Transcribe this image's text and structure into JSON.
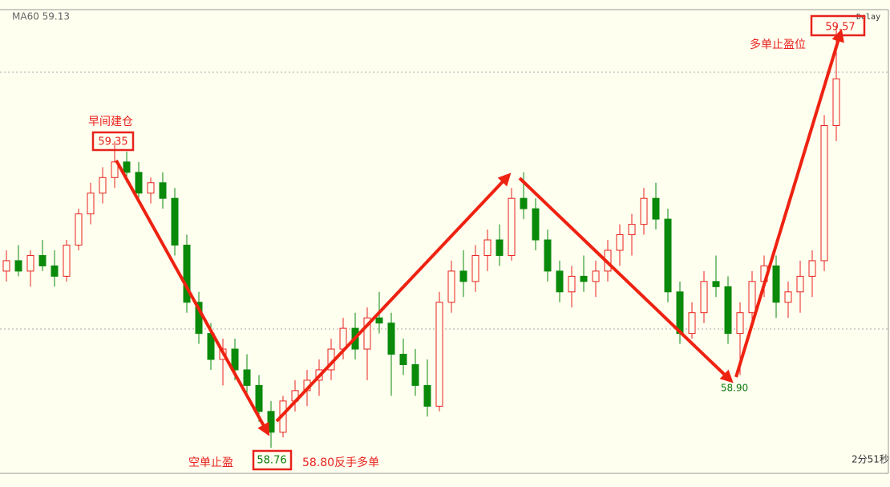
{
  "chart_data": {
    "type": "candlestick",
    "indicator": "MA60 59.13",
    "delay": "Delay",
    "timer": "2分51秒",
    "annotations": {
      "entry": "早间建仓",
      "entry_price": "59.35",
      "short_tp": "空单止盈",
      "short_tp_price": "58.76",
      "reverse": "58.80反手多单",
      "low2_price": "58.90",
      "long_tp": "多单止盈位",
      "long_tp_price": "59.57"
    },
    "up_color": "#e8221c",
    "down_color": "#0a8a0a",
    "ylim": [
      58.7,
      59.6
    ],
    "ohlc": [
      [
        59.1,
        59.14,
        59.08,
        59.12
      ],
      [
        59.12,
        59.15,
        59.09,
        59.1
      ],
      [
        59.1,
        59.14,
        59.07,
        59.13
      ],
      [
        59.13,
        59.16,
        59.1,
        59.11
      ],
      [
        59.11,
        59.14,
        59.07,
        59.09
      ],
      [
        59.09,
        59.16,
        59.08,
        59.15
      ],
      [
        59.15,
        59.22,
        59.14,
        59.21
      ],
      [
        59.21,
        59.27,
        59.19,
        59.25
      ],
      [
        59.25,
        59.3,
        59.23,
        59.28
      ],
      [
        59.28,
        59.35,
        59.26,
        59.31
      ],
      [
        59.31,
        59.33,
        59.27,
        59.29
      ],
      [
        59.29,
        59.31,
        59.24,
        59.25
      ],
      [
        59.25,
        59.28,
        59.23,
        59.27
      ],
      [
        59.27,
        59.29,
        59.22,
        59.24
      ],
      [
        59.24,
        59.26,
        59.13,
        59.15
      ],
      [
        59.15,
        59.17,
        59.02,
        59.04
      ],
      [
        59.04,
        59.06,
        58.96,
        58.98
      ],
      [
        58.98,
        59.0,
        58.91,
        58.93
      ],
      [
        58.93,
        58.97,
        58.88,
        58.95
      ],
      [
        58.95,
        58.97,
        58.89,
        58.91
      ],
      [
        58.91,
        58.94,
        58.86,
        58.88
      ],
      [
        58.88,
        58.9,
        58.81,
        58.83
      ],
      [
        58.83,
        58.85,
        58.76,
        58.79
      ],
      [
        58.79,
        58.86,
        58.78,
        58.85
      ],
      [
        58.85,
        58.89,
        58.83,
        58.87
      ],
      [
        58.87,
        58.91,
        58.84,
        58.89
      ],
      [
        58.89,
        58.93,
        58.86,
        58.91
      ],
      [
        58.91,
        58.97,
        58.89,
        58.95
      ],
      [
        58.95,
        59.01,
        58.93,
        58.99
      ],
      [
        58.99,
        59.02,
        58.93,
        58.95
      ],
      [
        58.95,
        59.03,
        58.89,
        59.01
      ],
      [
        59.01,
        59.06,
        58.98,
        59.0
      ],
      [
        59.0,
        59.02,
        58.86,
        58.94
      ],
      [
        58.94,
        58.97,
        58.9,
        58.92
      ],
      [
        58.92,
        58.95,
        58.86,
        58.88
      ],
      [
        58.88,
        58.93,
        58.82,
        58.84
      ],
      [
        58.84,
        59.06,
        58.83,
        59.04
      ],
      [
        59.04,
        59.12,
        59.02,
        59.1
      ],
      [
        59.1,
        59.14,
        59.05,
        59.08
      ],
      [
        59.08,
        59.15,
        59.06,
        59.13
      ],
      [
        59.13,
        59.18,
        59.1,
        59.16
      ],
      [
        59.16,
        59.19,
        59.11,
        59.13
      ],
      [
        59.13,
        59.26,
        59.12,
        59.24
      ],
      [
        59.24,
        59.29,
        59.2,
        59.22
      ],
      [
        59.22,
        59.24,
        59.14,
        59.16
      ],
      [
        59.16,
        59.18,
        59.08,
        59.1
      ],
      [
        59.1,
        59.12,
        59.04,
        59.06
      ],
      [
        59.06,
        59.11,
        59.03,
        59.09
      ],
      [
        59.09,
        59.13,
        59.06,
        59.08
      ],
      [
        59.08,
        59.12,
        59.05,
        59.1
      ],
      [
        59.1,
        59.16,
        59.08,
        59.14
      ],
      [
        59.14,
        59.19,
        59.11,
        59.17
      ],
      [
        59.17,
        59.21,
        59.13,
        59.19
      ],
      [
        59.19,
        59.26,
        59.17,
        59.24
      ],
      [
        59.24,
        59.27,
        59.18,
        59.2
      ],
      [
        59.2,
        59.22,
        59.04,
        59.06
      ],
      [
        59.06,
        59.08,
        58.96,
        58.98
      ],
      [
        58.98,
        59.04,
        58.97,
        59.02
      ],
      [
        59.02,
        59.1,
        59.0,
        59.08
      ],
      [
        59.08,
        59.13,
        59.05,
        59.07
      ],
      [
        59.07,
        59.09,
        58.96,
        58.98
      ],
      [
        58.98,
        59.04,
        58.9,
        59.02
      ],
      [
        59.02,
        59.1,
        59.0,
        59.08
      ],
      [
        59.08,
        59.13,
        59.05,
        59.11
      ],
      [
        59.11,
        59.13,
        59.01,
        59.04
      ],
      [
        59.04,
        59.08,
        59.01,
        59.06
      ],
      [
        59.06,
        59.12,
        59.02,
        59.09
      ],
      [
        59.09,
        59.14,
        59.05,
        59.12
      ],
      [
        59.12,
        59.4,
        59.1,
        59.38
      ],
      [
        59.38,
        59.57,
        59.35,
        59.47
      ]
    ]
  }
}
